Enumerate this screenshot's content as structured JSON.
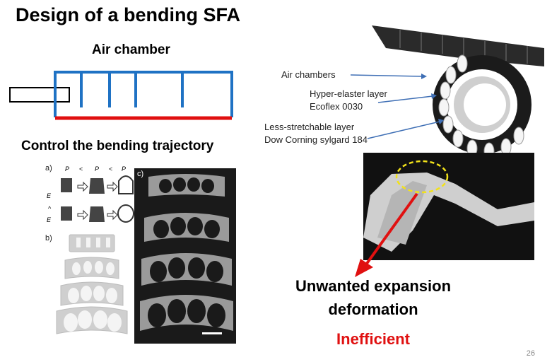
{
  "slide": {
    "title": "Design of a bending SFA",
    "page_number": "26"
  },
  "left": {
    "air_chamber_heading": "Air chamber",
    "trajectory_heading": "Control the bending trajectory",
    "panel_labels": [
      "a)",
      "b)",
      "c)"
    ],
    "pressure_labels": [
      "P",
      "<",
      "P",
      "<",
      "P"
    ]
  },
  "right": {
    "labels": {
      "air_chambers": "Air chambers",
      "hyper_elastic_1": "Hyper-elaster layer",
      "hyper_elastic_2": "Ecoflex 0030",
      "less_stretch_1": "Less-stretchable layer",
      "less_stretch_2": "Dow Corning sylgard 184"
    },
    "unwanted_1": "Unwanted expansion",
    "unwanted_2": "deformation",
    "inefficient": "Inefficient"
  },
  "colors": {
    "chamber_blue": "#1f72c4",
    "base_red": "#e01010",
    "arrow_red": "#e01010",
    "highlight_yellow": "#f2e21a"
  }
}
